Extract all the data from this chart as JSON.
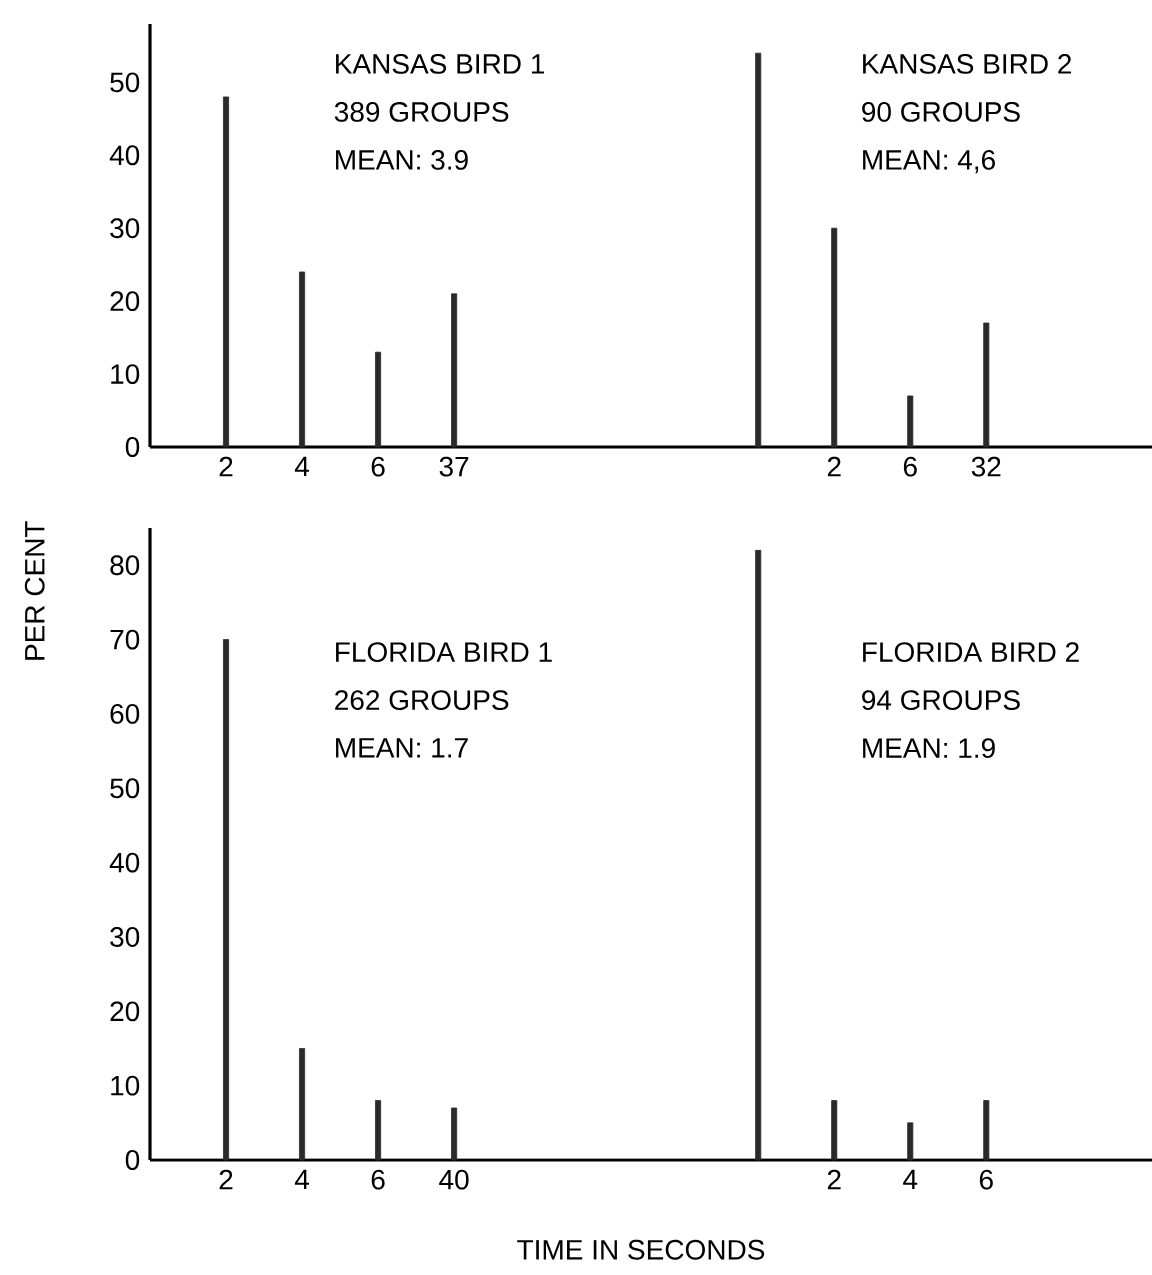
{
  "chart_data": [
    {
      "type": "bar",
      "annotations": [
        "KANSAS BIRD 1",
        "389 GROUPS",
        "MEAN: 3.9",
        "KANSAS BIRD 2",
        "90 GROUPS",
        "MEAN: 4,6"
      ],
      "categories": [
        "2",
        "4",
        "6",
        "37",
        null,
        null,
        null,
        null,
        "2",
        "6",
        "32"
      ],
      "values": [
        48,
        24,
        13,
        21,
        null,
        null,
        null,
        54,
        30,
        7,
        17
      ],
      "color": "#2a2a2a",
      "ylim": [
        0,
        58
      ],
      "yticks": [
        0,
        10,
        20,
        30,
        40,
        50
      ]
    },
    {
      "type": "bar",
      "annotations": [
        "FLORIDA BIRD 1",
        "262 GROUPS",
        "MEAN: 1.7",
        "FLORIDA BIRD 2",
        "94 GROUPS",
        "MEAN: 1.9"
      ],
      "categories": [
        "2",
        "4",
        "6",
        "40",
        null,
        null,
        null,
        null,
        "2",
        "4",
        "6"
      ],
      "values": [
        70,
        15,
        8,
        7,
        null,
        null,
        null,
        82,
        8,
        5,
        8
      ],
      "color": "#2a2a2a",
      "ylim": [
        0,
        85
      ],
      "yticks": [
        0,
        10,
        20,
        30,
        40,
        50,
        60,
        70,
        80
      ],
      "xlabel": "TIME IN SECONDS",
      "ylabel": "PER CENT"
    }
  ]
}
